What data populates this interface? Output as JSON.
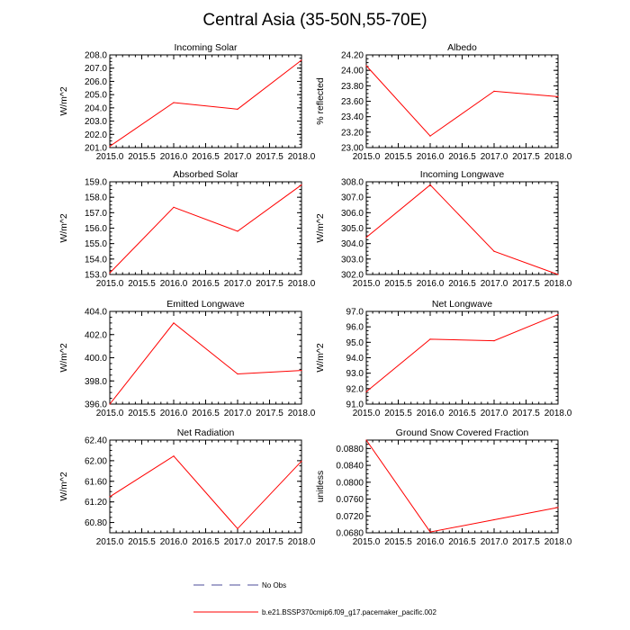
{
  "figure": {
    "title": "Central Asia (35-50N,55-70E)",
    "legend": [
      {
        "label": "No Obs",
        "style": "dashed",
        "color": "#4b4b9a"
      },
      {
        "label": "b.e21.BSSP370cmip6.f09_g17.pacemaker_pacific.002",
        "style": "solid",
        "color": "#ff0000"
      }
    ]
  },
  "chart_data": [
    {
      "type": "line",
      "title": "Incoming Solar",
      "ylabel": "W/m^2",
      "x": [
        2015,
        2016,
        2017,
        2018
      ],
      "series": [
        {
          "name": "b.e21.BSSP370cmip6.f09_g17.pacemaker_pacific.002",
          "color": "#ff0000",
          "values": [
            201.1,
            204.4,
            203.9,
            207.6
          ]
        }
      ],
      "xlim": [
        2015,
        2018
      ],
      "ylim": [
        201.0,
        208.0
      ],
      "xticks": [
        "2015.0",
        "2015.5",
        "2016.0",
        "2016.5",
        "2017.0",
        "2017.5",
        "2018.0"
      ],
      "yticks": [
        "201.0",
        "202.0",
        "203.0",
        "204.0",
        "205.0",
        "206.0",
        "207.0",
        "208.0"
      ]
    },
    {
      "type": "line",
      "title": "Albedo",
      "ylabel": "% reflected",
      "x": [
        2015,
        2016,
        2017,
        2018
      ],
      "series": [
        {
          "name": "b.e21.BSSP370cmip6.f09_g17.pacemaker_pacific.002",
          "color": "#ff0000",
          "values": [
            24.06,
            23.15,
            23.73,
            23.66
          ]
        }
      ],
      "xlim": [
        2015,
        2018
      ],
      "ylim": [
        23.0,
        24.2
      ],
      "xticks": [
        "2015.0",
        "2015.5",
        "2016.0",
        "2016.5",
        "2017.0",
        "2017.5",
        "2018.0"
      ],
      "yticks": [
        "23.00",
        "23.20",
        "23.40",
        "23.60",
        "23.80",
        "24.00",
        "24.20"
      ]
    },
    {
      "type": "line",
      "title": "Absorbed Solar",
      "ylabel": "W/m^2",
      "x": [
        2015,
        2016,
        2017,
        2018
      ],
      "series": [
        {
          "name": "b.e21.BSSP370cmip6.f09_g17.pacemaker_pacific.002",
          "color": "#ff0000",
          "values": [
            153.1,
            157.35,
            155.8,
            158.8
          ]
        }
      ],
      "xlim": [
        2015,
        2018
      ],
      "ylim": [
        153.0,
        159.0
      ],
      "xticks": [
        "2015.0",
        "2015.5",
        "2016.0",
        "2016.5",
        "2017.0",
        "2017.5",
        "2018.0"
      ],
      "yticks": [
        "153.0",
        "154.0",
        "155.0",
        "156.0",
        "157.0",
        "158.0",
        "159.0"
      ]
    },
    {
      "type": "line",
      "title": "Incoming Longwave",
      "ylabel": "W/m^2",
      "x": [
        2015,
        2016,
        2017,
        2018
      ],
      "series": [
        {
          "name": "b.e21.BSSP370cmip6.f09_g17.pacemaker_pacific.002",
          "color": "#ff0000",
          "values": [
            304.4,
            307.8,
            303.5,
            302.0
          ]
        }
      ],
      "xlim": [
        2015,
        2018
      ],
      "ylim": [
        302.0,
        308.0
      ],
      "xticks": [
        "2015.0",
        "2015.5",
        "2016.0",
        "2016.5",
        "2017.0",
        "2017.5",
        "2018.0"
      ],
      "yticks": [
        "302.0",
        "303.0",
        "304.0",
        "305.0",
        "306.0",
        "307.0",
        "308.0"
      ]
    },
    {
      "type": "line",
      "title": "Emitted Longwave",
      "ylabel": "W/m^2",
      "x": [
        2015,
        2016,
        2017,
        2018
      ],
      "series": [
        {
          "name": "b.e21.BSSP370cmip6.f09_g17.pacemaker_pacific.002",
          "color": "#ff0000",
          "values": [
            396.0,
            403.0,
            398.6,
            398.9
          ]
        }
      ],
      "xlim": [
        2015,
        2018
      ],
      "ylim": [
        396.0,
        404.0
      ],
      "xticks": [
        "2015.0",
        "2015.5",
        "2016.0",
        "2016.5",
        "2017.0",
        "2017.5",
        "2018.0"
      ],
      "yticks": [
        "396.0",
        "398.0",
        "400.0",
        "402.0",
        "404.0"
      ]
    },
    {
      "type": "line",
      "title": "Net Longwave",
      "ylabel": "W/m^2",
      "x": [
        2015,
        2016,
        2017,
        2018
      ],
      "series": [
        {
          "name": "b.e21.BSSP370cmip6.f09_g17.pacemaker_pacific.002",
          "color": "#ff0000",
          "values": [
            91.8,
            95.2,
            95.1,
            96.8
          ]
        }
      ],
      "xlim": [
        2015,
        2018
      ],
      "ylim": [
        91.0,
        97.0
      ],
      "xticks": [
        "2015.0",
        "2015.5",
        "2016.0",
        "2016.5",
        "2017.0",
        "2017.5",
        "2018.0"
      ],
      "yticks": [
        "91.0",
        "92.0",
        "93.0",
        "94.0",
        "95.0",
        "96.0",
        "97.0"
      ]
    },
    {
      "type": "line",
      "title": "Net Radiation",
      "ylabel": "W/m^2",
      "x": [
        2015,
        2016,
        2017,
        2018
      ],
      "series": [
        {
          "name": "b.e21.BSSP370cmip6.f09_g17.pacemaker_pacific.002",
          "color": "#ff0000",
          "values": [
            61.3,
            62.09,
            60.68,
            61.99
          ]
        }
      ],
      "xlim": [
        2015,
        2018
      ],
      "ylim": [
        60.6,
        62.4
      ],
      "xticks": [
        "2015.0",
        "2015.5",
        "2016.0",
        "2016.5",
        "2017.0",
        "2017.5",
        "2018.0"
      ],
      "yticks": [
        "60.80",
        "61.20",
        "61.60",
        "62.00",
        "62.40"
      ]
    },
    {
      "type": "line",
      "title": "Ground Snow Covered Fraction",
      "ylabel": "unitless",
      "x": [
        2015,
        2016,
        2017,
        2018
      ],
      "series": [
        {
          "name": "b.e21.BSSP370cmip6.f09_g17.pacemaker_pacific.002",
          "color": "#ff0000",
          "values": [
            0.09,
            0.0682,
            0.0711,
            0.074
          ]
        }
      ],
      "xlim": [
        2015,
        2018
      ],
      "ylim": [
        0.068,
        0.09
      ],
      "xticks": [
        "2015.0",
        "2015.5",
        "2016.0",
        "2016.5",
        "2017.0",
        "2017.5",
        "2018.0"
      ],
      "yticks": [
        "0.0680",
        "0.0720",
        "0.0760",
        "0.0800",
        "0.0840",
        "0.0880"
      ]
    }
  ]
}
